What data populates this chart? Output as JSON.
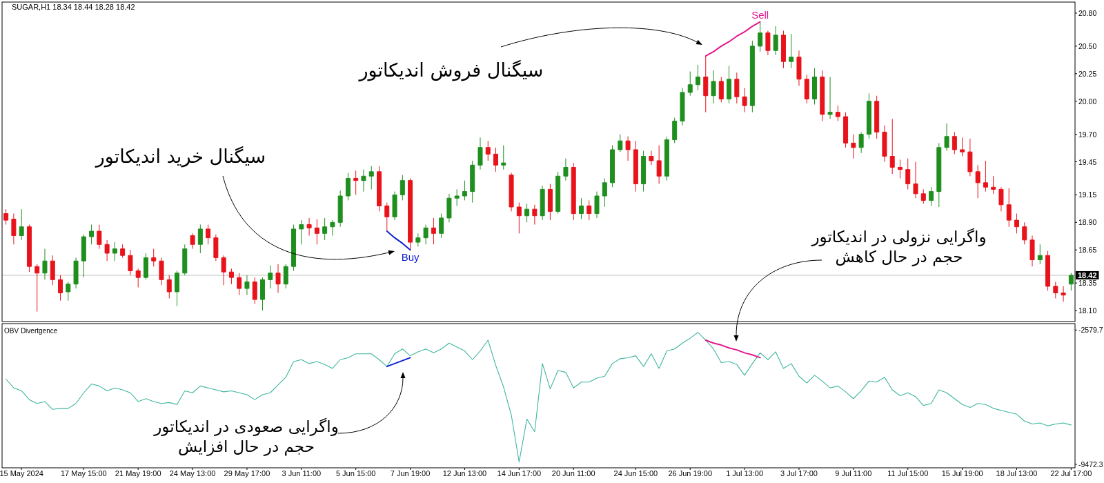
{
  "chart_data": [
    {
      "type": "candlestick",
      "title": "SUGAR,H1 18.34 18.44 18.28 18.42",
      "categories": [
        null,
        null,
        null,
        null,
        null,
        null,
        null,
        null,
        null,
        null,
        null,
        null,
        null,
        null,
        null,
        null,
        null,
        null,
        null,
        null,
        null,
        null,
        null,
        null,
        null,
        null,
        null,
        null,
        null,
        null,
        null,
        null,
        null,
        null,
        null,
        null,
        null,
        null,
        null,
        null,
        null,
        null,
        null,
        null,
        null,
        null,
        null,
        null,
        null,
        null,
        null,
        null,
        null,
        null,
        null,
        null,
        null,
        null,
        null,
        null,
        null,
        null,
        null,
        null,
        null,
        null,
        null,
        null,
        null,
        null,
        null,
        null,
        null,
        null,
        null,
        null,
        null,
        null,
        null,
        null,
        null,
        null,
        null,
        null,
        null,
        null,
        null,
        null,
        null,
        null,
        null,
        null,
        null,
        null,
        null,
        null,
        null,
        null,
        null,
        null,
        null,
        null,
        null,
        null,
        null,
        null,
        null,
        null,
        null,
        null,
        null,
        null,
        null,
        null,
        null,
        null,
        null,
        null,
        null,
        null,
        null,
        null,
        null,
        null,
        null,
        null,
        null,
        null,
        null,
        null,
        null,
        null,
        null,
        null,
        null,
        null,
        null,
        null
      ],
      "ylim": [
        18.0,
        20.9
      ],
      "yticks": [
        {
          "value": 20.8,
          "label": "20.80"
        },
        {
          "value": 20.5,
          "label": "20.50"
        },
        20.25,
        {
          "value": 20.0,
          "label": "20.00"
        },
        {
          "value": 19.7,
          "label": "19.70"
        },
        19.45,
        19.15,
        {
          "value": 18.9,
          "label": "18.90"
        },
        18.65,
        18.35,
        {
          "value": 18.1,
          "label": "18.10"
        }
      ],
      "series": [
        {
          "ohlc": [
            [
              18.98,
              19.02,
              18.88,
              18.92
            ],
            [
              18.93,
              18.98,
              18.7,
              18.78
            ],
            [
              18.78,
              19.02,
              18.74,
              18.86
            ],
            [
              18.86,
              18.88,
              18.45,
              18.5
            ],
            [
              18.5,
              18.52,
              18.09,
              18.44
            ],
            [
              18.44,
              18.66,
              18.38,
              18.55
            ],
            [
              18.55,
              18.6,
              18.33,
              18.38
            ],
            [
              18.38,
              18.42,
              18.19,
              18.26
            ],
            [
              18.27,
              18.36,
              18.19,
              18.34
            ],
            [
              18.34,
              18.58,
              18.3,
              18.55
            ],
            [
              18.55,
              18.79,
              18.4,
              18.77
            ],
            [
              18.77,
              18.88,
              18.7,
              18.82
            ],
            [
              18.82,
              18.88,
              18.66,
              18.7
            ],
            [
              18.7,
              18.74,
              18.55,
              18.62
            ],
            [
              18.62,
              18.72,
              18.55,
              18.66
            ],
            [
              18.66,
              18.7,
              18.58,
              18.6
            ],
            [
              18.6,
              18.65,
              18.42,
              18.46
            ],
            [
              18.46,
              18.48,
              18.31,
              18.4
            ],
            [
              18.4,
              18.62,
              18.38,
              18.58
            ],
            [
              18.58,
              18.66,
              18.5,
              18.55
            ],
            [
              18.55,
              18.58,
              18.33,
              18.38
            ],
            [
              18.38,
              18.42,
              18.21,
              18.27
            ],
            [
              18.27,
              18.46,
              18.14,
              18.44
            ],
            [
              18.44,
              18.7,
              18.42,
              18.66
            ],
            [
              18.78,
              18.8,
              18.66,
              18.7
            ],
            [
              18.7,
              18.88,
              18.62,
              18.84
            ],
            [
              18.84,
              18.88,
              18.7,
              18.76
            ],
            [
              18.76,
              18.79,
              18.55,
              18.58
            ],
            [
              18.58,
              18.6,
              18.33,
              18.45
            ],
            [
              18.45,
              18.48,
              18.34,
              18.4
            ],
            [
              18.4,
              18.44,
              18.24,
              18.3
            ],
            [
              18.3,
              18.42,
              18.24,
              18.36
            ],
            [
              18.36,
              18.4,
              18.16,
              18.2
            ],
            [
              18.2,
              18.4,
              18.1,
              18.38
            ],
            [
              18.38,
              18.51,
              18.3,
              18.44
            ],
            [
              18.44,
              18.52,
              18.26,
              18.34
            ],
            [
              18.34,
              18.52,
              18.3,
              18.5
            ],
            [
              18.5,
              18.88,
              18.46,
              18.84
            ],
            [
              18.84,
              18.92,
              18.7,
              18.88
            ],
            [
              18.88,
              18.94,
              18.78,
              18.85
            ],
            [
              18.85,
              18.93,
              18.7,
              18.8
            ],
            [
              18.8,
              18.94,
              18.74,
              18.86
            ],
            [
              18.86,
              18.92,
              18.78,
              18.9
            ],
            [
              18.9,
              19.19,
              18.86,
              19.14
            ],
            [
              19.14,
              19.35,
              19.1,
              19.3
            ],
            [
              19.3,
              19.37,
              19.15,
              19.28
            ],
            [
              19.28,
              19.38,
              19.18,
              19.32
            ],
            [
              19.32,
              19.41,
              19.2,
              19.36
            ],
            [
              19.36,
              19.41,
              19.0,
              19.05
            ],
            [
              19.05,
              19.08,
              18.82,
              18.95
            ],
            [
              18.95,
              19.18,
              18.92,
              19.15
            ],
            [
              19.15,
              19.33,
              19.1,
              19.28
            ],
            [
              19.28,
              19.3,
              18.65,
              18.72
            ],
            [
              18.72,
              18.8,
              18.68,
              18.76
            ],
            [
              18.76,
              18.88,
              18.7,
              18.85
            ],
            [
              18.85,
              18.94,
              18.7,
              18.8
            ],
            [
              18.8,
              18.98,
              18.76,
              18.94
            ],
            [
              18.94,
              19.16,
              18.9,
              19.12
            ],
            [
              19.12,
              19.2,
              19.05,
              19.14
            ],
            [
              19.14,
              19.28,
              19.1,
              19.18
            ],
            [
              19.18,
              19.46,
              19.08,
              19.42
            ],
            [
              19.42,
              19.67,
              19.38,
              19.58
            ],
            [
              19.58,
              19.64,
              19.46,
              19.52
            ],
            [
              19.52,
              19.58,
              19.36,
              19.42
            ],
            [
              19.42,
              19.6,
              19.38,
              19.44
            ],
            [
              19.33,
              19.35,
              19.0,
              19.04
            ],
            [
              19.04,
              19.08,
              18.8,
              18.96
            ],
            [
              18.96,
              19.07,
              18.9,
              19.02
            ],
            [
              19.02,
              19.06,
              18.88,
              18.96
            ],
            [
              18.96,
              19.23,
              18.92,
              19.2
            ],
            [
              19.2,
              19.25,
              18.92,
              19.0
            ],
            [
              19.0,
              19.36,
              18.98,
              19.32
            ],
            [
              19.32,
              19.48,
              19.28,
              19.4
            ],
            [
              19.4,
              19.44,
              18.92,
              18.98
            ],
            [
              18.98,
              19.12,
              18.93,
              19.05
            ],
            [
              19.05,
              19.1,
              18.92,
              18.98
            ],
            [
              18.98,
              19.18,
              18.94,
              19.14
            ],
            [
              19.14,
              19.3,
              19.04,
              19.26
            ],
            [
              19.26,
              19.6,
              19.22,
              19.56
            ],
            [
              19.56,
              19.7,
              19.54,
              19.64
            ],
            [
              19.64,
              19.68,
              19.46,
              19.56
            ],
            [
              19.56,
              19.64,
              19.18,
              19.25
            ],
            [
              19.25,
              19.55,
              19.18,
              19.5
            ],
            [
              19.5,
              19.55,
              19.42,
              19.46
            ],
            [
              19.46,
              19.6,
              19.25,
              19.32
            ],
            [
              19.32,
              19.68,
              19.28,
              19.65
            ],
            [
              19.65,
              19.85,
              19.62,
              19.82
            ],
            [
              19.82,
              20.12,
              19.78,
              20.08
            ],
            [
              20.08,
              20.27,
              20.05,
              20.15
            ],
            [
              20.15,
              20.33,
              20.1,
              20.22
            ],
            [
              20.22,
              20.41,
              19.9,
              20.05
            ],
            [
              20.05,
              20.28,
              19.98,
              20.18
            ],
            [
              20.18,
              20.22,
              19.99,
              20.02
            ],
            [
              20.02,
              20.32,
              19.98,
              20.2
            ],
            [
              20.2,
              20.26,
              19.98,
              20.04
            ],
            [
              20.04,
              20.12,
              19.9,
              19.96
            ],
            [
              19.96,
              20.55,
              19.9,
              20.5
            ],
            [
              20.5,
              20.72,
              20.45,
              20.62
            ],
            [
              20.62,
              20.64,
              20.42,
              20.46
            ],
            [
              20.46,
              20.68,
              20.42,
              20.6
            ],
            [
              20.6,
              20.64,
              20.3,
              20.36
            ],
            [
              20.36,
              20.61,
              20.3,
              20.4
            ],
            [
              20.4,
              20.46,
              20.14,
              20.2
            ],
            [
              20.2,
              20.24,
              19.98,
              20.02
            ],
            [
              20.02,
              20.3,
              19.97,
              20.22
            ],
            [
              20.22,
              20.28,
              19.82,
              19.88
            ],
            [
              19.88,
              20.22,
              19.84,
              19.9
            ],
            [
              19.9,
              19.96,
              19.82,
              19.86
            ],
            [
              19.86,
              19.9,
              19.58,
              19.62
            ],
            [
              19.62,
              19.7,
              19.48,
              19.58
            ],
            [
              19.58,
              19.72,
              19.53,
              19.7
            ],
            [
              19.7,
              20.07,
              19.66,
              20.0
            ],
            [
              20.0,
              20.05,
              19.66,
              19.72
            ],
            [
              19.72,
              19.78,
              19.45,
              19.5
            ],
            [
              19.5,
              19.84,
              19.34,
              19.4
            ],
            [
              19.4,
              19.47,
              19.3,
              19.38
            ],
            [
              19.38,
              19.48,
              19.2,
              19.25
            ],
            [
              19.25,
              19.45,
              19.12,
              19.16
            ],
            [
              19.16,
              19.2,
              19.07,
              19.1
            ],
            [
              19.1,
              19.22,
              19.05,
              19.18
            ],
            [
              19.18,
              19.62,
              19.04,
              19.58
            ],
            [
              19.58,
              19.8,
              19.55,
              19.68
            ],
            [
              19.68,
              19.72,
              19.52,
              19.56
            ],
            [
              19.56,
              19.67,
              19.5,
              19.54
            ],
            [
              19.54,
              19.66,
              19.32,
              19.36
            ],
            [
              19.36,
              19.42,
              19.12,
              19.26
            ],
            [
              19.26,
              19.46,
              19.18,
              19.22
            ],
            [
              19.22,
              19.32,
              19.16,
              19.2
            ],
            [
              19.2,
              19.22,
              19.0,
              19.06
            ],
            [
              19.06,
              19.21,
              18.86,
              18.92
            ],
            [
              18.92,
              18.98,
              18.8,
              18.86
            ],
            [
              18.86,
              18.9,
              18.7,
              18.74
            ],
            [
              18.74,
              18.78,
              18.5,
              18.56
            ],
            [
              18.56,
              18.7,
              18.52,
              18.6
            ],
            [
              18.6,
              18.64,
              18.28,
              18.32
            ],
            [
              18.32,
              18.36,
              18.21,
              18.26
            ],
            [
              18.26,
              18.32,
              18.18,
              18.24
            ],
            [
              18.34,
              18.44,
              18.28,
              18.42
            ]
          ],
          "colors": [
            "#e8131b",
            "#e8131b",
            "#1f8f1f",
            "#e8131b",
            "#e8131b",
            "#1f8f1f",
            "#e8131b",
            "#e8131b",
            "#1f8f1f",
            "#1f8f1f",
            "#1f8f1f",
            "#1f8f1f",
            "#e8131b",
            "#e8131b",
            "#1f8f1f",
            "#e8131b",
            "#e8131b",
            "#e8131b",
            "#1f8f1f",
            "#e8131b",
            "#e8131b",
            "#e8131b",
            "#1f8f1f",
            "#1f8f1f",
            "#e8131b",
            "#1f8f1f",
            "#e8131b",
            "#e8131b",
            "#e8131b",
            "#e8131b",
            "#e8131b",
            "#1f8f1f",
            "#e8131b",
            "#1f8f1f",
            "#1f8f1f",
            "#e8131b",
            "#1f8f1f",
            "#1f8f1f",
            "#1f8f1f",
            "#e8131b",
            "#e8131b",
            "#1f8f1f",
            "#1f8f1f",
            "#1f8f1f",
            "#1f8f1f",
            "#e8131b",
            "#1f8f1f",
            "#1f8f1f",
            "#e8131b",
            "#e8131b",
            "#1f8f1f",
            "#1f8f1f",
            "#e8131b",
            "#1f8f1f",
            "#1f8f1f",
            "#e8131b",
            "#1f8f1f",
            "#1f8f1f",
            "#1f8f1f",
            "#1f8f1f",
            "#1f8f1f",
            "#1f8f1f",
            "#e8131b",
            "#e8131b",
            "#1f8f1f",
            "#e8131b",
            "#e8131b",
            "#1f8f1f",
            "#e8131b",
            "#1f8f1f",
            "#e8131b",
            "#1f8f1f",
            "#1f8f1f",
            "#e8131b",
            "#1f8f1f",
            "#e8131b",
            "#1f8f1f",
            "#1f8f1f",
            "#1f8f1f",
            "#1f8f1f",
            "#e8131b",
            "#e8131b",
            "#1f8f1f",
            "#e8131b",
            "#e8131b",
            "#1f8f1f",
            "#1f8f1f",
            "#1f8f1f",
            "#1f8f1f",
            "#1f8f1f",
            "#e8131b",
            "#1f8f1f",
            "#e8131b",
            "#1f8f1f",
            "#e8131b",
            "#e8131b",
            "#1f8f1f",
            "#1f8f1f",
            "#e8131b",
            "#1f8f1f",
            "#e8131b",
            "#1f8f1f",
            "#e8131b",
            "#e8131b",
            "#1f8f1f",
            "#e8131b",
            "#1f8f1f",
            "#e8131b",
            "#e8131b",
            "#e8131b",
            "#1f8f1f",
            "#1f8f1f",
            "#e8131b",
            "#e8131b",
            "#e8131b",
            "#e8131b",
            "#e8131b",
            "#e8131b",
            "#e8131b",
            "#1f8f1f",
            "#1f8f1f",
            "#1f8f1f",
            "#e8131b",
            "#e8131b",
            "#e8131b",
            "#e8131b",
            "#e8131b",
            "#e8131b",
            "#e8131b",
            "#e8131b",
            "#e8131b",
            "#e8131b",
            "#e8131b",
            "#1f8f1f",
            "#e8131b",
            "#e8131b",
            "#e8131b",
            "#1f8f1f"
          ]
        },
        {
          "type": "line",
          "name": "Buy",
          "color": "#1020d0",
          "values": [
            null,
            null,
            null,
            null,
            null,
            null,
            null,
            null,
            null,
            null,
            null,
            null,
            null,
            null,
            null,
            null,
            null,
            null,
            null,
            null,
            null,
            null,
            null,
            null,
            null,
            null,
            null,
            null,
            null,
            null,
            null,
            null,
            null,
            null,
            null,
            null,
            null,
            null,
            null,
            null,
            null,
            null,
            null,
            null,
            null,
            null,
            null,
            null,
            null,
            18.82,
            18.76,
            18.71,
            18.65,
            null,
            null,
            null,
            null,
            null,
            null,
            null,
            null,
            null,
            null,
            null,
            null,
            null,
            null,
            null,
            null,
            null,
            null,
            null,
            null,
            null,
            null,
            null,
            null,
            null,
            null,
            null,
            null,
            null,
            null,
            null,
            null,
            null,
            null,
            null,
            null,
            null,
            null,
            null,
            null,
            null,
            null,
            null,
            null,
            null,
            null,
            null,
            null,
            null,
            null,
            null,
            null,
            null,
            null,
            null,
            null,
            null,
            null,
            null,
            null,
            null,
            null,
            null,
            null,
            null,
            null,
            null,
            null,
            null,
            null,
            null,
            null,
            null,
            null,
            null,
            null,
            null,
            null,
            null,
            null,
            null,
            null,
            null,
            null,
            null
          ]
        },
        {
          "type": "line",
          "name": "Sell",
          "color": "#e0188c",
          "values": [
            null,
            null,
            null,
            null,
            null,
            null,
            null,
            null,
            null,
            null,
            null,
            null,
            null,
            null,
            null,
            null,
            null,
            null,
            null,
            null,
            null,
            null,
            null,
            null,
            null,
            null,
            null,
            null,
            null,
            null,
            null,
            null,
            null,
            null,
            null,
            null,
            null,
            null,
            null,
            null,
            null,
            null,
            null,
            null,
            null,
            null,
            null,
            null,
            null,
            null,
            null,
            null,
            null,
            null,
            null,
            null,
            null,
            null,
            null,
            null,
            null,
            null,
            null,
            null,
            null,
            null,
            null,
            null,
            null,
            null,
            null,
            null,
            null,
            null,
            null,
            null,
            null,
            null,
            null,
            null,
            null,
            null,
            null,
            null,
            null,
            null,
            null,
            null,
            null,
            null,
            20.41,
            20.45,
            20.5,
            20.54,
            20.59,
            20.63,
            20.68,
            20.72,
            null,
            null,
            null,
            null,
            null,
            null,
            null,
            null,
            null,
            null,
            null,
            null,
            null,
            null,
            null,
            null,
            null,
            null,
            null,
            null,
            null,
            null,
            null,
            null,
            null,
            null,
            null,
            null,
            null,
            null,
            null,
            null,
            null,
            null,
            null,
            null,
            null,
            null,
            null,
            null
          ]
        }
      ],
      "ref_lines": [
        {
          "axis": "y",
          "value": 18.42,
          "label": "18.42",
          "color": "#c0c0c0"
        }
      ],
      "annotations": [
        "سیگنال خرید اندیکاتور",
        "سیگنال فروش اندیکاتور"
      ]
    },
    {
      "type": "line",
      "title": "OBV Divertgence",
      "categories": [
        null,
        null,
        "15 May 2024",
        null,
        null,
        null,
        null,
        null,
        null,
        null,
        "17 May 15:00",
        null,
        null,
        null,
        null,
        null,
        null,
        "21 May 19:00",
        null,
        null,
        null,
        null,
        null,
        null,
        "24 May 13:00",
        null,
        null,
        null,
        null,
        null,
        null,
        "29 May 17:00",
        null,
        null,
        null,
        null,
        null,
        null,
        "3 Jun 11:00",
        null,
        null,
        null,
        null,
        null,
        null,
        "5 Jun 15:00",
        null,
        null,
        null,
        null,
        null,
        null,
        "7 Jun 19:00",
        null,
        null,
        null,
        null,
        null,
        null,
        "12 Jun 13:00",
        null,
        null,
        null,
        null,
        null,
        null,
        "14 Jun 17:00",
        null,
        null,
        null,
        null,
        null,
        null,
        "20 Jun 11:00",
        null,
        null,
        null,
        null,
        null,
        null,
        null,
        "24 Jun 15:00",
        null,
        null,
        null,
        null,
        null,
        null,
        "26 Jun 19:00",
        null,
        null,
        null,
        null,
        null,
        null,
        "1 Jul 13:00",
        null,
        null,
        null,
        null,
        null,
        null,
        "3 Jul 17:00",
        null,
        null,
        null,
        null,
        null,
        null,
        "9 Jul 11:00",
        null,
        null,
        null,
        null,
        null,
        null,
        "11 Jul 15:00",
        null,
        null,
        null,
        null,
        null,
        null,
        "15 Jul 19:00",
        null,
        null,
        null,
        null,
        null,
        null,
        "18 Jul 13:00",
        null,
        null,
        null,
        null,
        null,
        null,
        "22 Jul 17:00"
      ],
      "ylim": [
        -9650,
        -2250
      ],
      "yticks": [
        -2579.7,
        -9472.3
      ],
      "series": [
        {
          "color": "#3fb59f",
          "values": [
            -5100,
            -5550,
            -5700,
            -6150,
            -6350,
            -6250,
            -6650,
            -6600,
            -6600,
            -6350,
            -5800,
            -5350,
            -5450,
            -5700,
            -5550,
            -5650,
            -5800,
            -6250,
            -6100,
            -6250,
            -6350,
            -6300,
            -6400,
            -5700,
            -5800,
            -5450,
            -5550,
            -5650,
            -5750,
            -5700,
            -5800,
            -5900,
            -6150,
            -5900,
            -5800,
            -5400,
            -5000,
            -4200,
            -4100,
            -4300,
            -4200,
            -4350,
            -4550,
            -4100,
            -4000,
            -3800,
            -3800,
            -3800,
            -4100,
            -4450,
            -3800,
            -3550,
            -3900,
            -3700,
            -3550,
            -3750,
            -3550,
            -3250,
            -3450,
            -3650,
            -4100,
            -3650,
            -3100,
            -4400,
            -5500,
            -6950,
            -9350,
            -7150,
            -7800,
            -4300,
            -5600,
            -4650,
            -4750,
            -5550,
            -5250,
            -5250,
            -5050,
            -4950,
            -4300,
            -4050,
            -4000,
            -3900,
            -4450,
            -3800,
            -4550,
            -3650,
            -3550,
            -3250,
            -3000,
            -2700,
            -3100,
            -3550,
            -4250,
            -4200,
            -4350,
            -4900,
            -4300,
            -3750,
            -4100,
            -3700,
            -4550,
            -4300,
            -4950,
            -5300,
            -4900,
            -5200,
            -5550,
            -5450,
            -5750,
            -6100,
            -5700,
            -5200,
            -5250,
            -5000,
            -5650,
            -5950,
            -5800,
            -6000,
            -6450,
            -6350,
            -5650,
            -5800,
            -6100,
            -6400,
            -6550,
            -6350,
            -6400,
            -6600,
            -6700,
            -6800,
            -6900,
            -7250,
            -7400,
            -7350,
            -7500,
            -7400,
            -7350,
            -7450
          ]
        },
        {
          "color": "#1020d0",
          "values": [
            null,
            null,
            null,
            null,
            null,
            null,
            null,
            null,
            null,
            null,
            null,
            null,
            null,
            null,
            null,
            null,
            null,
            null,
            null,
            null,
            null,
            null,
            null,
            null,
            null,
            null,
            null,
            null,
            null,
            null,
            null,
            null,
            null,
            null,
            null,
            null,
            null,
            null,
            null,
            null,
            null,
            null,
            null,
            null,
            null,
            null,
            null,
            null,
            null,
            -4450,
            -4300,
            -4150,
            -4000,
            null,
            null,
            null,
            null,
            null,
            null,
            null,
            null,
            null,
            null,
            null,
            null,
            null,
            null,
            null,
            null,
            null,
            null,
            null,
            null,
            null,
            null,
            null,
            null,
            null,
            null,
            null,
            null,
            null,
            null,
            null,
            null,
            null,
            null,
            null,
            null,
            null,
            null,
            null,
            null,
            null,
            null,
            null,
            null,
            null,
            null,
            null,
            null,
            null,
            null,
            null,
            null,
            null,
            null,
            null,
            null,
            null,
            null,
            null,
            null,
            null,
            null,
            null,
            null,
            null,
            null,
            null,
            null,
            null,
            null,
            null,
            null,
            null,
            null,
            null,
            null,
            null,
            null,
            null,
            null,
            null,
            null,
            null,
            null,
            null
          ]
        },
        {
          "color": "#e0188c",
          "values": [
            null,
            null,
            null,
            null,
            null,
            null,
            null,
            null,
            null,
            null,
            null,
            null,
            null,
            null,
            null,
            null,
            null,
            null,
            null,
            null,
            null,
            null,
            null,
            null,
            null,
            null,
            null,
            null,
            null,
            null,
            null,
            null,
            null,
            null,
            null,
            null,
            null,
            null,
            null,
            null,
            null,
            null,
            null,
            null,
            null,
            null,
            null,
            null,
            null,
            null,
            null,
            null,
            null,
            null,
            null,
            null,
            null,
            null,
            null,
            null,
            null,
            null,
            null,
            null,
            null,
            null,
            null,
            null,
            null,
            null,
            null,
            null,
            null,
            null,
            null,
            null,
            null,
            null,
            null,
            null,
            null,
            null,
            null,
            null,
            null,
            null,
            null,
            null,
            null,
            null,
            -3100,
            -3250,
            -3350,
            -3500,
            -3600,
            -3750,
            -3850,
            -4000,
            null,
            null,
            null,
            null,
            null,
            null,
            null,
            null,
            null,
            null,
            null,
            null,
            null,
            null,
            null,
            null,
            null,
            null,
            null,
            null,
            null,
            null,
            null,
            null,
            null,
            null,
            null,
            null,
            null,
            null,
            null,
            null,
            null,
            null,
            null,
            null,
            null,
            null,
            null,
            null
          ]
        }
      ],
      "annotations": [
        "واگرایی نزولی در اندیکاتور حجم در حال کاهش",
        "واگرایی صعودی در اندیکاتور حجم در حال افزایش"
      ]
    }
  ]
}
